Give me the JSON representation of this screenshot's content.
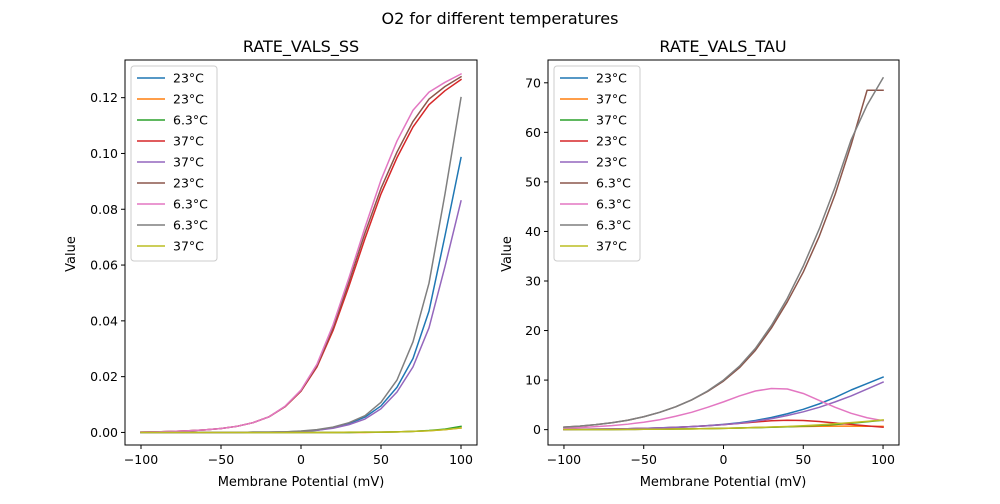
{
  "figure": {
    "suptitle": "O2 for different temperatures"
  },
  "chart_data": [
    {
      "type": "line",
      "title": "RATE_VALS_SS",
      "xlabel": "Membrane Potential (mV)",
      "ylabel": "Value",
      "xlim": [
        -110,
        110
      ],
      "ylim": [
        -0.0045,
        0.1335
      ],
      "xticks": [
        -100,
        -50,
        0,
        50,
        100
      ],
      "yticks": [
        0.0,
        0.02,
        0.04,
        0.06,
        0.08,
        0.1,
        0.12
      ],
      "ytick_labels": [
        "0.00",
        "0.02",
        "0.04",
        "0.06",
        "0.08",
        "0.10",
        "0.12"
      ],
      "grid": false,
      "legend_position": "upper-left",
      "x": [
        -100,
        -90,
        -80,
        -70,
        -60,
        -50,
        -40,
        -30,
        -20,
        -10,
        0,
        10,
        20,
        30,
        40,
        50,
        60,
        70,
        80,
        90,
        100
      ],
      "series": [
        {
          "name": "23°C",
          "color": "#1f77b4",
          "values": [
            0.0,
            0.0,
            0.0,
            0.0,
            0.0,
            0.0,
            0.0,
            0.0001,
            0.0001,
            0.0002,
            0.0004,
            0.0008,
            0.0017,
            0.0032,
            0.0055,
            0.0095,
            0.0162,
            0.0265,
            0.0435,
            0.0705,
            0.0985
          ]
        },
        {
          "name": "23°C",
          "color": "#ff7f0e",
          "values": [
            0.0,
            0.0,
            0.0,
            0.0,
            0.0,
            0.0,
            0.0,
            0.0,
            0.0,
            0.0,
            0.0,
            0.0,
            0.0,
            0.0,
            0.0,
            0.0001,
            0.0002,
            0.0004,
            0.0006,
            0.001,
            0.0016
          ]
        },
        {
          "name": "6.3°C",
          "color": "#2ca02c",
          "values": [
            0.0,
            0.0,
            0.0,
            0.0,
            0.0,
            0.0,
            0.0,
            0.0,
            0.0,
            0.0,
            0.0,
            0.0,
            0.0,
            0.0,
            0.0001,
            0.0001,
            0.0002,
            0.0004,
            0.0007,
            0.0012,
            0.0022
          ]
        },
        {
          "name": "37°C",
          "color": "#d62728",
          "values": [
            0.0001,
            0.0002,
            0.0004,
            0.0006,
            0.0009,
            0.0014,
            0.0022,
            0.0035,
            0.0056,
            0.0092,
            0.0148,
            0.0235,
            0.0365,
            0.0525,
            0.0695,
            0.0855,
            0.0985,
            0.1095,
            0.1175,
            0.1225,
            0.1265
          ]
        },
        {
          "name": "37°C",
          "color": "#9467bd",
          "values": [
            0.0,
            0.0,
            0.0,
            0.0,
            0.0,
            0.0,
            0.0,
            0.0001,
            0.0001,
            0.0002,
            0.0004,
            0.0008,
            0.0015,
            0.0028,
            0.0048,
            0.0085,
            0.0145,
            0.0235,
            0.0375,
            0.0595,
            0.083
          ]
        },
        {
          "name": "23°C",
          "color": "#8c564b",
          "values": [
            0.0001,
            0.0002,
            0.0004,
            0.0006,
            0.0009,
            0.0014,
            0.0022,
            0.0035,
            0.0056,
            0.0093,
            0.015,
            0.024,
            0.0375,
            0.054,
            0.0715,
            0.0875,
            0.1005,
            0.1115,
            0.1195,
            0.124,
            0.1275
          ]
        },
        {
          "name": "6.3°C",
          "color": "#e377c2",
          "values": [
            0.0001,
            0.0002,
            0.0004,
            0.0006,
            0.0009,
            0.0014,
            0.0022,
            0.0035,
            0.0056,
            0.0094,
            0.0152,
            0.0245,
            0.0385,
            0.0555,
            0.0735,
            0.0905,
            0.1045,
            0.1155,
            0.122,
            0.1255,
            0.1285
          ]
        },
        {
          "name": "6.3°C",
          "color": "#7f7f7f",
          "values": [
            0.0,
            0.0,
            0.0,
            0.0,
            0.0,
            0.0,
            0.0,
            0.0001,
            0.0001,
            0.0002,
            0.0005,
            0.001,
            0.0019,
            0.0035,
            0.006,
            0.0108,
            0.0188,
            0.0325,
            0.0535,
            0.0855,
            0.12
          ]
        },
        {
          "name": "37°C",
          "color": "#bcbd22",
          "values": [
            0.0,
            0.0,
            0.0,
            0.0,
            0.0,
            0.0,
            0.0,
            0.0,
            0.0,
            0.0,
            0.0,
            0.0,
            0.0,
            0.0001,
            0.0001,
            0.0001,
            0.0002,
            0.0004,
            0.0006,
            0.001,
            0.0016
          ]
        }
      ]
    },
    {
      "type": "line",
      "title": "RATE_VALS_TAU",
      "xlabel": "Membrane Potential (mV)",
      "ylabel": "Value",
      "xlim": [
        -110,
        110
      ],
      "ylim": [
        -3.1,
        74.6
      ],
      "xticks": [
        -100,
        -50,
        0,
        50,
        100
      ],
      "yticks": [
        0,
        10,
        20,
        30,
        40,
        50,
        60,
        70
      ],
      "ytick_labels": [
        "0",
        "10",
        "20",
        "30",
        "40",
        "50",
        "60",
        "70"
      ],
      "grid": false,
      "legend_position": "upper-left",
      "x": [
        -100,
        -90,
        -80,
        -70,
        -60,
        -50,
        -40,
        -30,
        -20,
        -10,
        0,
        10,
        20,
        30,
        40,
        50,
        60,
        70,
        80,
        90,
        100
      ],
      "series": [
        {
          "name": "23°C",
          "color": "#1f77b4",
          "values": [
            0.05,
            0.07,
            0.1,
            0.14,
            0.19,
            0.26,
            0.35,
            0.47,
            0.62,
            0.82,
            1.07,
            1.4,
            1.85,
            2.45,
            3.2,
            4.1,
            5.2,
            6.5,
            8.0,
            9.3,
            10.6
          ]
        },
        {
          "name": "37°C",
          "color": "#ff7f0e",
          "values": [
            0.02,
            0.02,
            0.03,
            0.04,
            0.05,
            0.07,
            0.09,
            0.12,
            0.16,
            0.21,
            0.27,
            0.34,
            0.42,
            0.5,
            0.58,
            0.64,
            0.68,
            0.7,
            0.7,
            0.68,
            0.65
          ]
        },
        {
          "name": "37°C",
          "color": "#2ca02c",
          "values": [
            0.02,
            0.02,
            0.03,
            0.04,
            0.05,
            0.07,
            0.09,
            0.12,
            0.16,
            0.2,
            0.26,
            0.32,
            0.4,
            0.48,
            0.58,
            0.7,
            0.85,
            1.05,
            1.3,
            1.6,
            1.9
          ]
        },
        {
          "name": "23°C",
          "color": "#d62728",
          "values": [
            0.05,
            0.07,
            0.1,
            0.14,
            0.19,
            0.26,
            0.34,
            0.45,
            0.6,
            0.78,
            1.0,
            1.27,
            1.55,
            1.8,
            1.9,
            1.85,
            1.65,
            1.35,
            1.05,
            0.75,
            0.5
          ]
        },
        {
          "name": "23°C",
          "color": "#9467bd",
          "values": [
            0.05,
            0.07,
            0.1,
            0.14,
            0.19,
            0.26,
            0.35,
            0.46,
            0.6,
            0.78,
            1.0,
            1.3,
            1.7,
            2.2,
            2.85,
            3.6,
            4.5,
            5.6,
            6.8,
            8.2,
            9.6
          ]
        },
        {
          "name": "6.3°C",
          "color": "#8c564b",
          "values": [
            0.5,
            0.7,
            1.0,
            1.4,
            1.9,
            2.6,
            3.5,
            4.6,
            6.0,
            7.7,
            9.8,
            12.5,
            16.0,
            20.5,
            25.8,
            31.8,
            39.0,
            47.5,
            57.5,
            68.5,
            68.5
          ]
        },
        {
          "name": "6.3°C",
          "color": "#e377c2",
          "values": [
            0.3,
            0.4,
            0.6,
            0.8,
            1.1,
            1.5,
            2.0,
            2.7,
            3.5,
            4.5,
            5.6,
            6.8,
            7.8,
            8.3,
            8.2,
            7.3,
            5.9,
            4.5,
            3.3,
            2.4,
            1.8
          ]
        },
        {
          "name": "6.3°C",
          "color": "#7f7f7f",
          "values": [
            0.5,
            0.7,
            1.0,
            1.4,
            1.9,
            2.6,
            3.5,
            4.6,
            6.0,
            7.8,
            10.0,
            12.8,
            16.4,
            21.0,
            26.5,
            33.0,
            40.5,
            49.0,
            58.5,
            65.5,
            71.0
          ]
        },
        {
          "name": "37°C",
          "color": "#bcbd22",
          "values": [
            0.02,
            0.02,
            0.03,
            0.04,
            0.05,
            0.07,
            0.09,
            0.12,
            0.16,
            0.2,
            0.26,
            0.33,
            0.42,
            0.52,
            0.64,
            0.79,
            0.97,
            1.18,
            1.42,
            1.68,
            1.95
          ]
        }
      ]
    }
  ]
}
